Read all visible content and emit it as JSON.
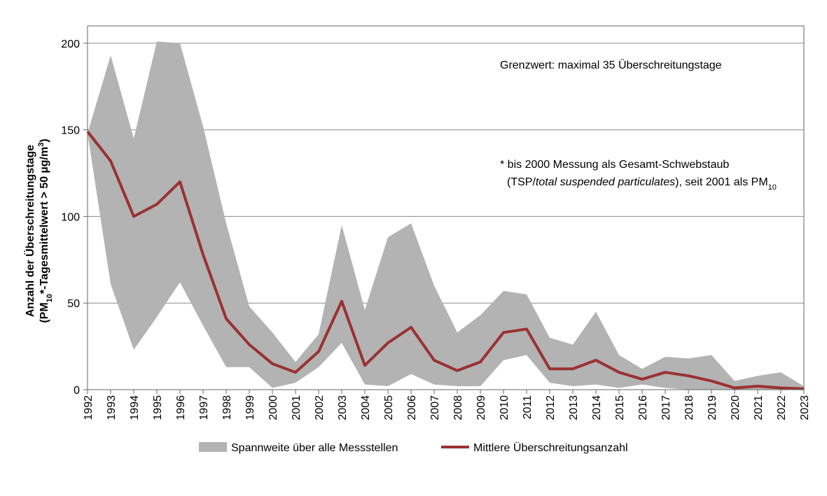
{
  "chart_data": {
    "type": "area",
    "title": "",
    "xlabel": "",
    "ylabel": {
      "line1": "Anzahl der Überschreitungstage",
      "line2_pre": "(PM",
      "line2_sub": "10",
      "line2_mid": "*-Tagesmittelwert > 50 µg/m",
      "line2_sup": "3",
      "line2_post": ")"
    },
    "ylim": [
      0,
      210
    ],
    "yticks": [
      0,
      50,
      100,
      150,
      200
    ],
    "grid": true,
    "x": [
      "1992",
      "1993",
      "1994",
      "1995",
      "1996",
      "1997",
      "1998",
      "1999",
      "2000",
      "2001",
      "2002",
      "2003",
      "2004",
      "2005",
      "2006",
      "2007",
      "2008",
      "2009",
      "2010",
      "2011",
      "2012",
      "2013",
      "2014",
      "2015",
      "2016",
      "2017",
      "2018",
      "2019",
      "2020",
      "2021",
      "2022",
      "2023"
    ],
    "series": [
      {
        "name": "Spannweite über alle Messstellen",
        "kind": "range",
        "color": "#b3b3b3",
        "upper": [
          148,
          193,
          145,
          201,
          200,
          152,
          96,
          48,
          33,
          16,
          32,
          95,
          46,
          88,
          96,
          60,
          33,
          43,
          57,
          55,
          30,
          26,
          45,
          20,
          12,
          19,
          18,
          20,
          5,
          8,
          10,
          2
        ],
        "lower": [
          148,
          61,
          23,
          42,
          62,
          37,
          13,
          13,
          1,
          4,
          13,
          27,
          3,
          2,
          9,
          3,
          2,
          2,
          17,
          20,
          4,
          2,
          3,
          1,
          3,
          1,
          0,
          0,
          0,
          0,
          0,
          0
        ]
      },
      {
        "name": "Mittlere Überschreitungsanzahl",
        "kind": "line",
        "color": "#9b3131",
        "values": [
          149,
          132,
          100,
          107,
          120,
          78,
          41,
          26,
          15,
          10,
          22,
          51,
          14,
          27,
          36,
          17,
          11,
          16,
          33,
          35,
          12,
          12,
          17,
          10,
          6,
          10,
          8,
          5,
          1,
          2,
          1,
          0.5
        ]
      }
    ],
    "legend_position": "bottom",
    "annotations": {
      "limit": "Grenzwert: maximal 35 Überschreitungstage",
      "note_line1": "* bis 2000 Messung als Gesamt-Schwebstaub",
      "note_line2_pre": "(TSP/",
      "note_line2_italic": "total suspended particulates",
      "note_line2_mid": "), seit 2001 als PM",
      "note_line2_sub": "10"
    }
  }
}
